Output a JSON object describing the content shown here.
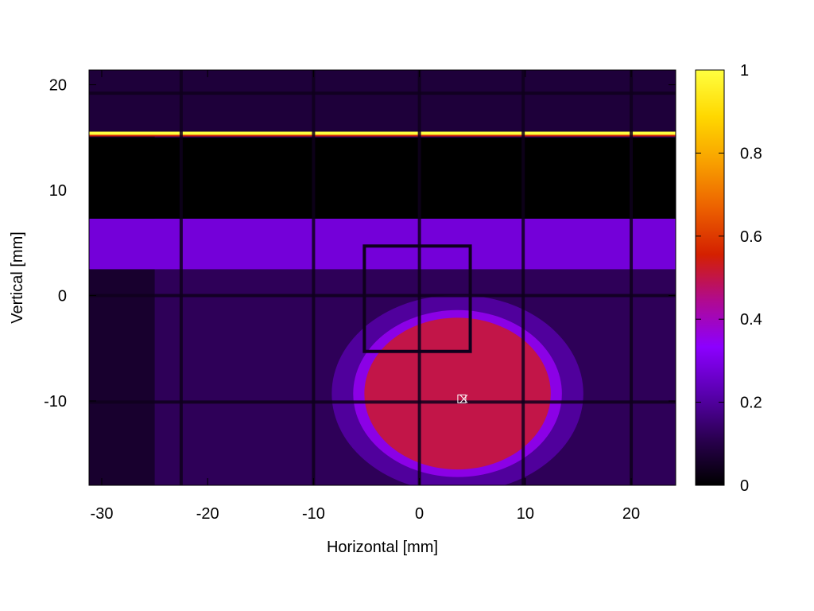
{
  "chart_data": {
    "type": "heatmap",
    "title": "",
    "xlabel": "Horizontal [mm]",
    "ylabel": "Vertical [mm]",
    "xlim": [
      -31.2,
      24.2
    ],
    "ylim": [
      -18.0,
      21.4
    ],
    "xticks": [
      -30,
      -20,
      -10,
      0,
      10,
      20
    ],
    "yticks": [
      -10,
      0,
      10,
      20
    ],
    "colorbar": {
      "min": 0,
      "max": 1,
      "ticks": [
        0,
        0.2,
        0.4,
        0.6,
        0.8,
        1
      ]
    },
    "colormap": [
      "#000000",
      "#2a0050",
      "#5a00b0",
      "#8c00ff",
      "#b00a90",
      "#d42000",
      "#ec6000",
      "#f8a000",
      "#ffd800",
      "#ffff40"
    ],
    "features": {
      "bright_line": {
        "y": 15.4,
        "value": 1.0
      },
      "dark_band": {
        "y_from": 7.3,
        "y_to": 15.0,
        "value": 0.0
      },
      "band_level": {
        "y_from": 2.5,
        "y_to": 7.3,
        "value": 0.28
      },
      "beam_spot": {
        "center": [
          3.6,
          -9.3
        ],
        "radius_x": 8.8,
        "radius_y": 7.2,
        "value": 0.5
      },
      "inner_box": {
        "x": [
          -5.2,
          4.8
        ],
        "y": [
          -5.3,
          4.7
        ]
      },
      "marker": [
        4.0,
        -9.8
      ],
      "grid_x": [
        -22.5,
        -10,
        0,
        9.8,
        20
      ],
      "grid_y": [
        -10.1,
        0.0,
        19.2
      ]
    }
  }
}
